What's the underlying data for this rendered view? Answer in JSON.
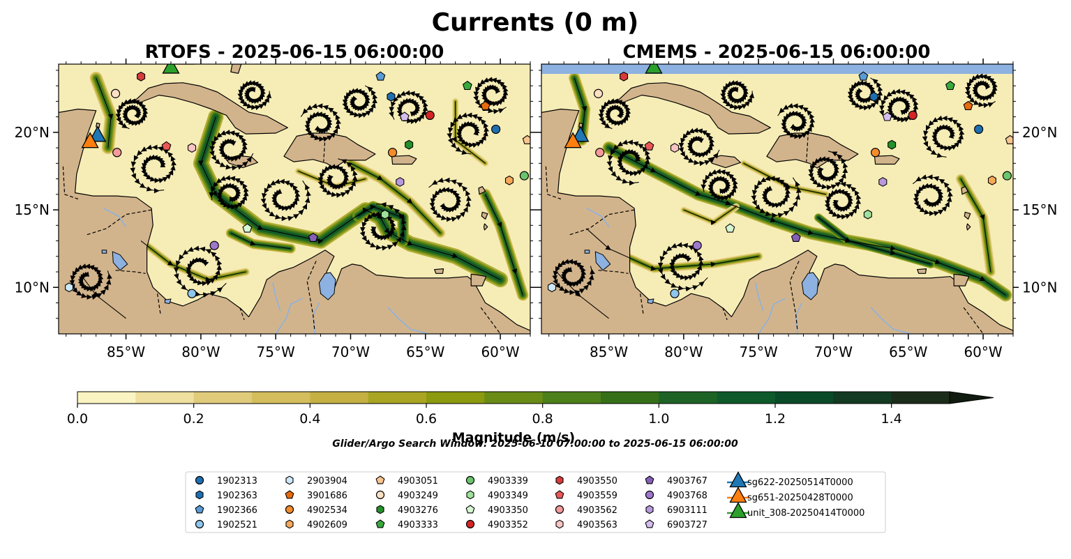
{
  "figure": {
    "suptitle": "Currents (0 m)",
    "search_window": "Glider/Argo Search Window: 2025-06-10 07:00:00 to 2025-06-15 06:00:00"
  },
  "panels": [
    {
      "title": "RTOFS - 2025-06-15 06:00:00"
    },
    {
      "title": "CMEMS - 2025-06-15 06:00:00"
    }
  ],
  "colors": {
    "land": "#d2b48c",
    "ocean_low": "#f6edb6",
    "lakes": "#8db1e0",
    "colormap": [
      "#faf4c2",
      "#efe09f",
      "#e0cb7b",
      "#d4bd5c",
      "#c5b043",
      "#a9a523",
      "#8b9a0f",
      "#6a8c16",
      "#4d7f1a",
      "#357018",
      "#1d6326",
      "#0e5a2a",
      "#0a4a28",
      "#133a22",
      "#1c2c1a",
      "#111b10"
    ]
  },
  "chart_data": [
    {
      "type": "heatmap",
      "title": "RTOFS - 2025-06-15 06:00:00",
      "quantity": "Currents (0 m)",
      "xlim": [
        -89.5,
        -58.0
      ],
      "ylim": [
        7.0,
        24.4
      ],
      "xticks": [
        "85°W",
        "80°W",
        "75°W",
        "70°W",
        "65°W",
        "60°W"
      ],
      "yticks": [
        "10°N",
        "15°N",
        "20°N"
      ],
      "ytick_side": "left"
    },
    {
      "type": "heatmap",
      "title": "CMEMS - 2025-06-15 06:00:00",
      "quantity": "Currents (0 m)",
      "xlim": [
        -89.5,
        -58.0
      ],
      "ylim": [
        7.0,
        24.4
      ],
      "xticks": [
        "85°W",
        "80°W",
        "75°W",
        "70°W",
        "65°W",
        "60°W"
      ],
      "yticks": [
        "10°N",
        "15°N",
        "20°N"
      ],
      "ytick_side": "right"
    }
  ],
  "colorbar": {
    "label": "Magnitude (m/s)",
    "range": [
      0.0,
      1.5
    ],
    "extend": "max",
    "levels": [
      0.0,
      0.1,
      0.2,
      0.3,
      0.4,
      0.5,
      0.6,
      0.7,
      0.8,
      0.9,
      1.0,
      1.1,
      1.2,
      1.3,
      1.4,
      1.5
    ],
    "tick_labels": [
      "0.0",
      "0.2",
      "0.4",
      "0.6",
      "0.8",
      "1.0",
      "1.2",
      "1.4"
    ]
  },
  "legend": {
    "columns": [
      [
        {
          "label": "1902313",
          "marker": "circle",
          "color": "#1f6fb0"
        },
        {
          "label": "1902363",
          "marker": "hexagon",
          "color": "#1f6fb0"
        },
        {
          "label": "1902366",
          "marker": "pentagon",
          "color": "#5a9bd5"
        },
        {
          "label": "1902521",
          "marker": "circle",
          "color": "#8ec6ec"
        }
      ],
      [
        {
          "label": "2903904",
          "marker": "hexagon",
          "color": "#cde8f8"
        },
        {
          "label": "3901686",
          "marker": "pentagon",
          "color": "#e86a0c"
        },
        {
          "label": "4902534",
          "marker": "circle",
          "color": "#f28c2c"
        },
        {
          "label": "4902609",
          "marker": "hexagon",
          "color": "#f6a95a"
        }
      ],
      [
        {
          "label": "4903051",
          "marker": "pentagon",
          "color": "#f8c590"
        },
        {
          "label": "4903249",
          "marker": "circle",
          "color": "#fde0c4"
        },
        {
          "label": "4903276",
          "marker": "hexagon",
          "color": "#24902a"
        },
        {
          "label": "4903333",
          "marker": "pentagon",
          "color": "#39a83e"
        }
      ],
      [
        {
          "label": "4903339",
          "marker": "circle",
          "color": "#6cc46e"
        },
        {
          "label": "4903349",
          "marker": "hexagon",
          "color": "#9fe09b"
        },
        {
          "label": "4903350",
          "marker": "pentagon",
          "color": "#d6f6d2"
        },
        {
          "label": "4903352",
          "marker": "circle",
          "color": "#d42424"
        }
      ],
      [
        {
          "label": "4903550",
          "marker": "hexagon",
          "color": "#d63c3c"
        },
        {
          "label": "4903559",
          "marker": "pentagon",
          "color": "#e85858"
        },
        {
          "label": "4903562",
          "marker": "circle",
          "color": "#f49a9a"
        },
        {
          "label": "4903563",
          "marker": "hexagon",
          "color": "#f8c4c4"
        }
      ],
      [
        {
          "label": "4903767",
          "marker": "pentagon",
          "color": "#8660b8"
        },
        {
          "label": "4903768",
          "marker": "circle",
          "color": "#9e78cc"
        },
        {
          "label": "6903111",
          "marker": "hexagon",
          "color": "#b899dd"
        },
        {
          "label": "6903727",
          "marker": "pentagon",
          "color": "#d5bdf0"
        }
      ],
      [
        {
          "label": "sg622-20250514T0000",
          "marker": "triangle",
          "color": "#1f77b4"
        },
        {
          "label": "sg651-20250428T0000",
          "marker": "triangle",
          "color": "#ff7f0e"
        },
        {
          "label": "unit_308-20250414T0000",
          "marker": "triangle",
          "color": "#2ca02c"
        }
      ]
    ]
  },
  "floats": [
    {
      "id": "4903550",
      "lon": -84.0,
      "lat": 23.6,
      "marker": "hexagon",
      "color": "#d63c3c"
    },
    {
      "id": "4903249",
      "lon": -85.7,
      "lat": 22.5,
      "marker": "circle",
      "color": "#fde0c4"
    },
    {
      "id": "1902366",
      "lon": -68.0,
      "lat": 23.6,
      "marker": "pentagon",
      "color": "#5a9bd5"
    },
    {
      "id": "1902363",
      "lon": -67.3,
      "lat": 22.3,
      "marker": "hexagon",
      "color": "#1f6fb0"
    },
    {
      "id": "4903333",
      "lon": -62.2,
      "lat": 23.0,
      "marker": "pentagon",
      "color": "#39a83e"
    },
    {
      "id": "3901686",
      "lon": -61.0,
      "lat": 21.7,
      "marker": "pentagon",
      "color": "#e86a0c"
    },
    {
      "id": "4903352",
      "lon": -64.7,
      "lat": 21.1,
      "marker": "circle",
      "color": "#d42424"
    },
    {
      "id": "6903727",
      "lon": -66.4,
      "lat": 21.0,
      "marker": "pentagon",
      "color": "#d5bdf0"
    },
    {
      "id": "1902313",
      "lon": -60.3,
      "lat": 20.2,
      "marker": "circle",
      "color": "#1f6fb0"
    },
    {
      "id": "4903276",
      "lon": -66.1,
      "lat": 19.2,
      "marker": "hexagon",
      "color": "#24902a"
    },
    {
      "id": "4902534",
      "lon": -67.2,
      "lat": 18.7,
      "marker": "circle",
      "color": "#f28c2c"
    },
    {
      "id": "4903563",
      "lon": -80.6,
      "lat": 19.0,
      "marker": "hexagon",
      "color": "#f8c4c4"
    },
    {
      "id": "4903559",
      "lon": -82.3,
      "lat": 19.1,
      "marker": "pentagon",
      "color": "#e85858"
    },
    {
      "id": "4903562",
      "lon": -85.6,
      "lat": 18.7,
      "marker": "circle",
      "color": "#f49a9a"
    },
    {
      "id": "6903111",
      "lon": -66.7,
      "lat": 16.8,
      "marker": "hexagon",
      "color": "#b899dd"
    },
    {
      "id": "4902609",
      "lon": -59.4,
      "lat": 16.9,
      "marker": "hexagon",
      "color": "#f6a95a"
    },
    {
      "id": "4903339",
      "lon": -58.4,
      "lat": 17.2,
      "marker": "circle",
      "color": "#6cc46e"
    },
    {
      "id": "4903051",
      "lon": -58.2,
      "lat": 19.5,
      "marker": "pentagon",
      "color": "#f8c590"
    },
    {
      "id": "4903349",
      "lon": -67.7,
      "lat": 14.7,
      "marker": "hexagon",
      "color": "#9fe09b"
    },
    {
      "id": "4903350",
      "lon": -76.9,
      "lat": 13.8,
      "marker": "pentagon",
      "color": "#d6f6d2"
    },
    {
      "id": "4903767",
      "lon": -72.5,
      "lat": 13.2,
      "marker": "pentagon",
      "color": "#8660b8"
    },
    {
      "id": "4903768",
      "lon": -79.1,
      "lat": 12.7,
      "marker": "circle",
      "color": "#9e78cc"
    },
    {
      "id": "1902521",
      "lon": -80.6,
      "lat": 9.6,
      "marker": "circle",
      "color": "#8ec6ec"
    },
    {
      "id": "2903904",
      "lon": -88.8,
      "lat": 10.0,
      "marker": "hexagon",
      "color": "#cde8f8"
    }
  ],
  "gliders": [
    {
      "id": "sg622-20250514T0000",
      "lon": -86.9,
      "lat": 19.8,
      "color": "#1f77b4"
    },
    {
      "id": "sg651-20250428T0000",
      "lon": -87.4,
      "lat": 19.4,
      "color": "#ff7f0e"
    },
    {
      "id": "unit_308-20250414T0000",
      "lon": -82.0,
      "lat": 24.2,
      "color": "#2ca02c"
    }
  ]
}
